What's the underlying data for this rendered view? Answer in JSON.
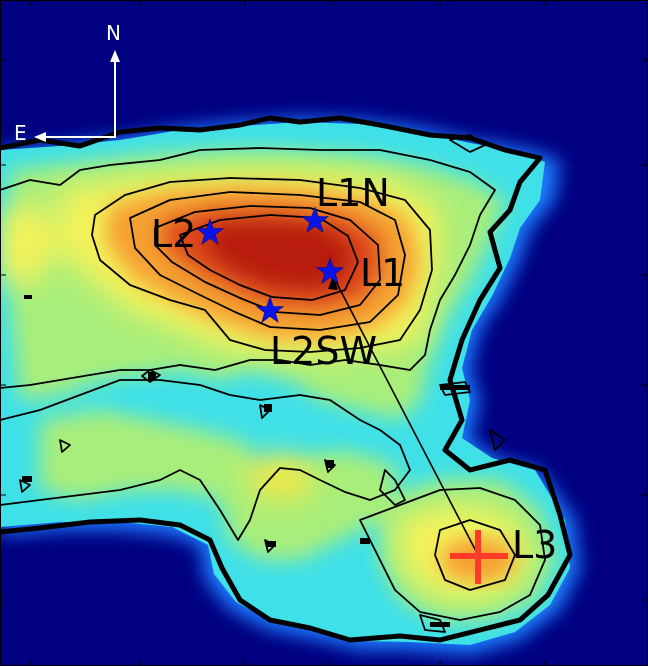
{
  "compass": {
    "north_label": "N",
    "east_label": "E"
  },
  "sources": [
    {
      "id": "L1",
      "label": "L1",
      "marker": "star"
    },
    {
      "id": "L1N",
      "label": "L1N",
      "marker": "star"
    },
    {
      "id": "L2",
      "label": "L2",
      "marker": "star"
    },
    {
      "id": "L2SW",
      "label": "L2SW",
      "marker": "star"
    },
    {
      "id": "L3",
      "label": "L3",
      "marker": "cross"
    }
  ],
  "colors": {
    "background": "#000080",
    "star": "#0a14e6",
    "cross": "#ff3a2a",
    "contour": "#000000"
  }
}
